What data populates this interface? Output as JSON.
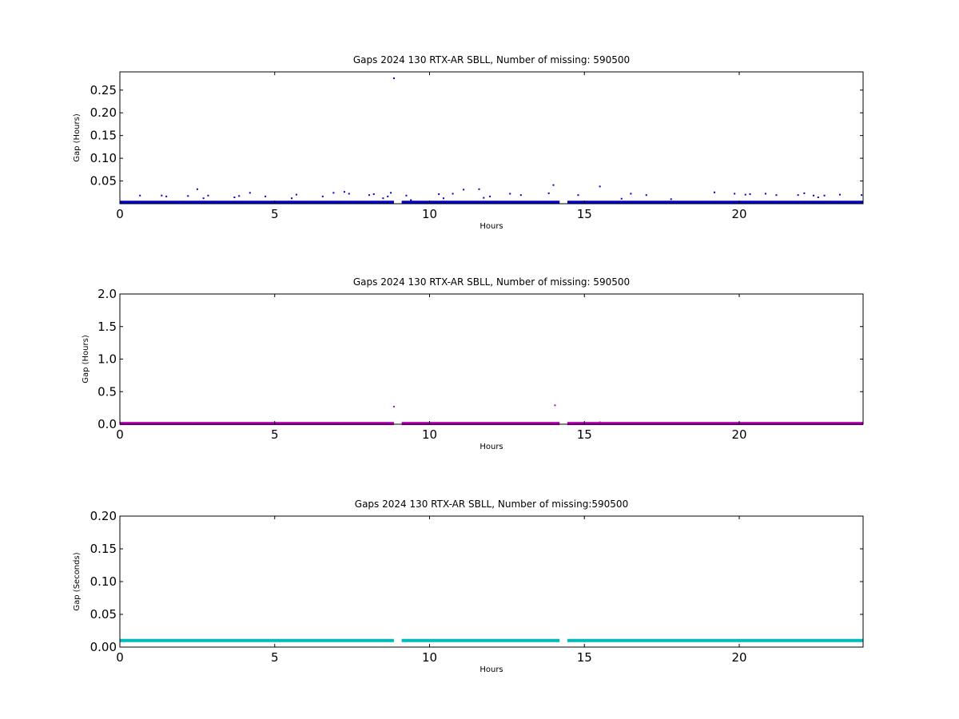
{
  "chart_data": [
    {
      "type": "scatter",
      "title": "Gaps 2024 130 RTX-AR  SBLL, Number of missing: 590500",
      "xlabel": "Hours",
      "ylabel": "Gap (Hours)",
      "xlim": [
        0,
        24
      ],
      "ylim": [
        0,
        0.29
      ],
      "xticks": [
        0,
        5,
        10,
        15,
        20
      ],
      "xtick_labels": [
        "0",
        "5",
        "10",
        "15",
        "20"
      ],
      "yticks": [
        0.05,
        0.1,
        0.15,
        0.2,
        0.25
      ],
      "ytick_labels": [
        "0.05",
        "0.10",
        "0.15",
        "0.20",
        "0.25"
      ],
      "grid": false,
      "color": "#0000cc",
      "baseline": {
        "y": 0.003,
        "segments": [
          [
            0,
            8.85
          ],
          [
            9.1,
            14.2
          ],
          [
            14.45,
            24
          ]
        ]
      },
      "points": {
        "x": [
          0.65,
          1.35,
          1.5,
          2.2,
          2.5,
          2.7,
          2.85,
          3.7,
          3.85,
          4.2,
          4.7,
          5.55,
          5.7,
          6.55,
          6.9,
          7.25,
          7.4,
          8.05,
          8.2,
          8.5,
          8.65,
          8.75,
          8.85,
          9.25,
          9.4,
          10.3,
          10.45,
          10.75,
          11.1,
          11.6,
          11.75,
          11.95,
          12.6,
          12.95,
          13.85,
          14.0,
          14.8,
          15.5,
          16.2,
          16.5,
          17.0,
          17.8,
          19.2,
          19.85,
          20.2,
          20.35,
          20.85,
          21.2,
          21.9,
          22.1,
          22.4,
          22.55,
          22.75,
          23.25,
          23.95
        ],
        "y": [
          0.018,
          0.018,
          0.016,
          0.017,
          0.032,
          0.012,
          0.018,
          0.014,
          0.017,
          0.024,
          0.016,
          0.012,
          0.02,
          0.016,
          0.024,
          0.026,
          0.022,
          0.019,
          0.021,
          0.012,
          0.016,
          0.024,
          0.276,
          0.018,
          0.008,
          0.021,
          0.012,
          0.022,
          0.031,
          0.032,
          0.013,
          0.016,
          0.022,
          0.019,
          0.023,
          0.041,
          0.019,
          0.038,
          0.011,
          0.022,
          0.019,
          0.01,
          0.025,
          0.022,
          0.02,
          0.021,
          0.022,
          0.019,
          0.019,
          0.023,
          0.018,
          0.014,
          0.018,
          0.02,
          0.019
        ]
      }
    },
    {
      "type": "scatter",
      "title": "Gaps 2024 130 RTX-AR  SBLL, Number of missing: 590500",
      "xlabel": "Hours",
      "ylabel": "Gap (Hours)",
      "xlim": [
        0,
        24
      ],
      "ylim": [
        0,
        2.0
      ],
      "xticks": [
        0,
        5,
        10,
        15,
        20
      ],
      "xtick_labels": [
        "0",
        "5",
        "10",
        "15",
        "20"
      ],
      "yticks": [
        0,
        0.5,
        1.0,
        1.5,
        2.0
      ],
      "ytick_labels": [
        "0.0",
        "0.5",
        "1.0",
        "1.5",
        "2.0"
      ],
      "grid": false,
      "color": "#bb00bb",
      "baseline": {
        "y": 0.01,
        "segments": [
          [
            0,
            8.85
          ],
          [
            9.1,
            14.2
          ],
          [
            14.45,
            24
          ]
        ]
      },
      "points": {
        "x": [
          2.5,
          4.2,
          6.9,
          7.25,
          8.85,
          14.05,
          15.5,
          16.5,
          23.25
        ],
        "y": [
          0.02,
          0.02,
          0.02,
          0.02,
          0.27,
          0.29,
          0.03,
          0.02,
          0.02
        ]
      }
    },
    {
      "type": "scatter",
      "title": "Gaps 2024 130 RTX-AR  SBLL, Number of missing:590500",
      "xlabel": "Hours",
      "ylabel": "Gap (Seconds)",
      "xlim": [
        0,
        24
      ],
      "ylim": [
        0,
        0.2
      ],
      "xticks": [
        0,
        5,
        10,
        15,
        20
      ],
      "xtick_labels": [
        "0",
        "5",
        "10",
        "15",
        "20"
      ],
      "yticks": [
        0,
        0.05,
        0.1,
        0.15,
        0.2
      ],
      "ytick_labels": [
        "0.00",
        "0.05",
        "0.10",
        "0.15",
        "0.20"
      ],
      "grid": false,
      "color": "#00bbbb",
      "baseline": {
        "y": 0.01,
        "segments": [
          [
            0,
            8.85
          ],
          [
            9.1,
            14.2
          ],
          [
            14.45,
            24
          ]
        ]
      },
      "points": {
        "x": [],
        "y": []
      }
    }
  ]
}
